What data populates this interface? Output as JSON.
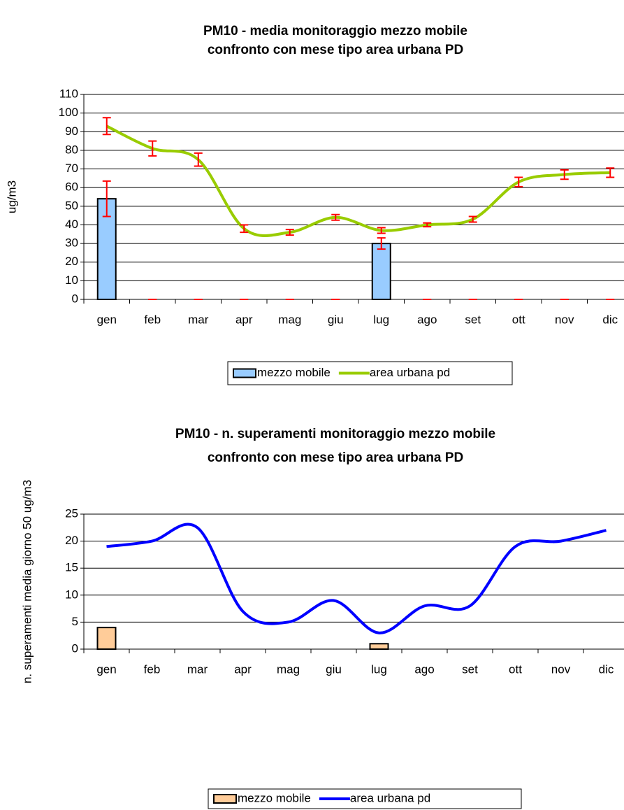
{
  "chart_data": [
    {
      "type": "bar",
      "title": "PM10 -  media monitoraggio mezzo mobile",
      "subtitle": "confronto con mese tipo area urbana PD",
      "y_label": "ug/m3",
      "categories": [
        "gen",
        "feb",
        "mar",
        "apr",
        "mag",
        "giu",
        "lug",
        "ago",
        "set",
        "ott",
        "nov",
        "dic"
      ],
      "ylim": [
        0,
        110
      ],
      "yticks": [
        0,
        10,
        20,
        30,
        40,
        50,
        60,
        70,
        80,
        90,
        100,
        110
      ],
      "grid": true,
      "series": [
        {
          "name": "mezzo mobile",
          "type": "bar",
          "color": "#99ccff",
          "error_color": "#ff0000",
          "values": [
            54,
            0,
            0,
            0,
            0,
            0,
            30,
            0,
            0,
            0,
            0,
            0
          ],
          "errors": [
            9.5,
            0,
            0,
            0,
            0,
            0,
            3,
            0,
            0,
            0,
            0,
            0
          ]
        },
        {
          "name": "area urbana pd",
          "type": "line",
          "color": "#99cc00",
          "error_color": "#ff0000",
          "values": [
            93,
            81,
            75,
            38,
            36,
            44,
            37,
            40,
            43,
            63,
            67,
            68
          ],
          "errors": [
            4.5,
            4,
            3.5,
            2,
            1.5,
            1.5,
            1.5,
            1,
            1.5,
            2.5,
            2.5,
            2.5
          ]
        }
      ]
    },
    {
      "type": "bar",
      "title": "PM10 - n. superamenti monitoraggio mezzo mobile",
      "subtitle": "confronto con mese tipo area urbana PD",
      "y_label": "n. superamenti media giorno 50 ug/m3",
      "categories": [
        "gen",
        "feb",
        "mar",
        "apr",
        "mag",
        "giu",
        "lug",
        "ago",
        "set",
        "ott",
        "nov",
        "dic"
      ],
      "ylim": [
        0,
        25
      ],
      "yticks": [
        0,
        5,
        10,
        15,
        20,
        25
      ],
      "grid": true,
      "series": [
        {
          "name": "mezzo mobile",
          "type": "bar",
          "color": "#ffcc99",
          "values": [
            4,
            0,
            0,
            0,
            0,
            0,
            1,
            0,
            0,
            0,
            0,
            0
          ]
        },
        {
          "name": "area urbana pd",
          "type": "line",
          "color": "#0000ff",
          "values": [
            19,
            20,
            22.5,
            7,
            5,
            9,
            3,
            8,
            8,
            19,
            20,
            22
          ]
        }
      ]
    }
  ]
}
